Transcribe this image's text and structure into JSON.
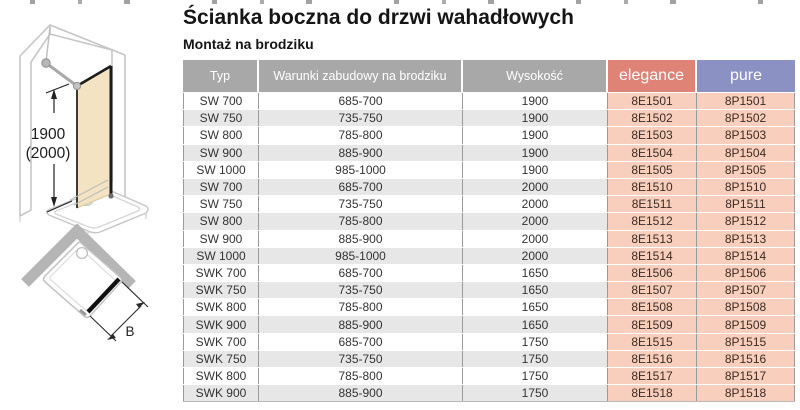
{
  "page": {
    "title": "Ścianka boczna do drzwi wahadłowych",
    "subtitle": "Montaż na brodziku"
  },
  "colors": {
    "header_grey": "#a8a8a8",
    "elegance_header": "#df8377",
    "pure_header": "#8b92c3",
    "cell_peach": "#f7cfbc",
    "row_alt": "#e7e7e7",
    "row_white": "#ffffff",
    "code_text": "#3d2b24",
    "glass_fill": "#f3e3c2"
  },
  "drawings": {
    "elevation": {
      "description": "isometric-side-panel-on-tray",
      "dimension_line1": "1900",
      "dimension_line2": "(2000)"
    },
    "plan": {
      "description": "top-view-side-panel-on-tray",
      "dimension_label": "B"
    }
  },
  "table": {
    "headers": [
      {
        "label": "Typ",
        "variant": "grey"
      },
      {
        "label": "Warunki zabudowy na brodziku",
        "variant": "grey"
      },
      {
        "label": "Wysokość",
        "variant": "grey"
      },
      {
        "label": "elegance",
        "variant": "elegance"
      },
      {
        "label": "pure",
        "variant": "pure"
      }
    ],
    "rows": [
      [
        "SW 700",
        "685-700",
        "1900",
        "8E1501",
        "8P1501"
      ],
      [
        "SW 750",
        "735-750",
        "1900",
        "8E1502",
        "8P1502"
      ],
      [
        "SW 800",
        "785-800",
        "1900",
        "8E1503",
        "8P1503"
      ],
      [
        "SW 900",
        "885-900",
        "1900",
        "8E1504",
        "8P1504"
      ],
      [
        "SW 1000",
        "985-1000",
        "1900",
        "8E1505",
        "8P1505"
      ],
      [
        "SW 700",
        "685-700",
        "2000",
        "8E1510",
        "8P1510"
      ],
      [
        "SW 750",
        "735-750",
        "2000",
        "8E1511",
        "8P1511"
      ],
      [
        "SW 800",
        "785-800",
        "2000",
        "8E1512",
        "8P1512"
      ],
      [
        "SW 900",
        "885-900",
        "2000",
        "8E1513",
        "8P1513"
      ],
      [
        "SW 1000",
        "985-1000",
        "2000",
        "8E1514",
        "8P1514"
      ],
      [
        "SWK 700",
        "685-700",
        "1650",
        "8E1506",
        "8P1506"
      ],
      [
        "SWK 750",
        "735-750",
        "1650",
        "8E1507",
        "8P1507"
      ],
      [
        "SWK 800",
        "785-800",
        "1650",
        "8E1508",
        "8P1508"
      ],
      [
        "SWK 900",
        "885-900",
        "1650",
        "8E1509",
        "8P1509"
      ],
      [
        "SWK 700",
        "685-700",
        "1750",
        "8E1515",
        "8P1515"
      ],
      [
        "SWK 750",
        "735-750",
        "1750",
        "8E1516",
        "8P1516"
      ],
      [
        "SWK 800",
        "785-800",
        "1750",
        "8E1517",
        "8P1517"
      ],
      [
        "SWK 900",
        "885-900",
        "1750",
        "8E1518",
        "8P1518"
      ]
    ]
  }
}
